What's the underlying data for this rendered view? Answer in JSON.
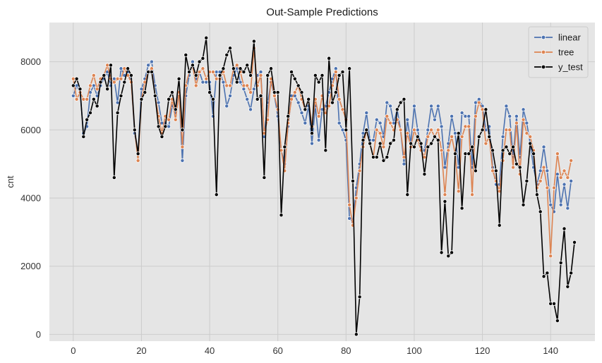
{
  "chart_data": {
    "type": "line",
    "title": "Out-Sample Predictions",
    "xlabel": "",
    "ylabel": "cnt",
    "xlim": [
      -7,
      153
    ],
    "ylim": [
      -200,
      9150
    ],
    "xticks": [
      0,
      20,
      40,
      60,
      80,
      100,
      120,
      140
    ],
    "yticks": [
      0,
      2000,
      4000,
      6000,
      8000
    ],
    "grid": true,
    "legend_position": "top-right",
    "background_color": "#e5e5e5",
    "grid_color": "#cccccc",
    "series": [
      {
        "name": "linear",
        "color": "#4c72b0",
        "values": [
          7000,
          7300,
          7100,
          5900,
          6100,
          7100,
          7300,
          7000,
          7300,
          7500,
          7700,
          7300,
          7500,
          6800,
          7800,
          7600,
          7700,
          7400,
          5900,
          5300,
          7200,
          7500,
          7900,
          8000,
          7300,
          6800,
          6200,
          6200,
          6100,
          6700,
          6500,
          7100,
          5100,
          7000,
          7600,
          8000,
          7500,
          7700,
          7400,
          7400,
          7400,
          6400,
          7700,
          7700,
          7400,
          6700,
          7000,
          7600,
          7800,
          7400,
          7200,
          6900,
          6600,
          7200,
          7600,
          7700,
          5800,
          6800,
          7400,
          7000,
          6400,
          5400,
          5000,
          6100,
          7000,
          7000,
          6800,
          6500,
          6200,
          6700,
          5600,
          6700,
          5700,
          6600,
          6700,
          7100,
          7500,
          7800,
          6200,
          6000,
          5700,
          3400,
          3300,
          4300,
          5000,
          5900,
          6500,
          5700,
          5700,
          6300,
          6200,
          5800,
          6800,
          6700,
          6200,
          6600,
          6000,
          5000,
          6300,
          5600,
          6700,
          6000,
          5500,
          5400,
          6000,
          6700,
          6300,
          6700,
          6100,
          4900,
          5600,
          6400,
          5900,
          4900,
          6500,
          6400,
          6400,
          4900,
          6800,
          6900,
          6700,
          6000,
          6100,
          4900,
          4400,
          4400,
          5800,
          6700,
          6400,
          5200,
          6400,
          5200,
          6600,
          6200,
          5600,
          4900,
          4400,
          4800,
          5500,
          4800,
          3800,
          3600,
          4700,
          3800,
          4400,
          3700,
          4500
        ]
      },
      {
        "name": "tree",
        "color": "#dd8452",
        "values": [
          7500,
          6900,
          7100,
          6900,
          6900,
          7300,
          7600,
          7200,
          7500,
          7600,
          7900,
          7500,
          7400,
          7500,
          7500,
          7800,
          7600,
          7400,
          6000,
          5100,
          6900,
          7400,
          7700,
          7800,
          7000,
          6400,
          5900,
          6400,
          6300,
          6900,
          6300,
          7100,
          5500,
          7300,
          7700,
          7900,
          7300,
          7700,
          7800,
          7500,
          7700,
          7700,
          7500,
          7500,
          7700,
          7300,
          7300,
          7800,
          7900,
          7700,
          7300,
          7300,
          7100,
          8400,
          7300,
          7600,
          5900,
          6300,
          7500,
          7000,
          6600,
          5400,
          4800,
          6200,
          6900,
          7100,
          7300,
          6900,
          6600,
          6900,
          6100,
          6900,
          6400,
          7000,
          6500,
          6700,
          7300,
          7700,
          6900,
          6600,
          6300,
          3800,
          3200,
          4000,
          4800,
          5500,
          6000,
          5600,
          5200,
          6000,
          5900,
          5500,
          6400,
          6200,
          6000,
          6300,
          6000,
          5200,
          5900,
          5500,
          6000,
          5700,
          5400,
          5200,
          5800,
          6000,
          5800,
          6000,
          5400,
          4100,
          5400,
          5800,
          5300,
          4200,
          5800,
          6100,
          6100,
          4100,
          6400,
          6800,
          6600,
          5600,
          5800,
          4800,
          4500,
          4200,
          5100,
          6000,
          6000,
          4900,
          6200,
          4700,
          6300,
          5900,
          5800,
          5400,
          4300,
          4500,
          4900,
          4300,
          2300,
          4300,
          5300,
          4600,
          4800,
          4600,
          5100
        ]
      },
      {
        "name": "y_test",
        "color": "#000000",
        "values": [
          7300,
          7500,
          7200,
          5800,
          6300,
          6500,
          6900,
          6700,
          7400,
          7600,
          7200,
          7900,
          4600,
          6500,
          7000,
          7400,
          7800,
          7600,
          6000,
          5300,
          6900,
          7100,
          7700,
          7700,
          7000,
          6100,
          5800,
          6100,
          6900,
          7100,
          6600,
          7500,
          6000,
          8200,
          7700,
          7900,
          7600,
          8000,
          8100,
          8700,
          7100,
          6900,
          4100,
          7600,
          7800,
          8200,
          8400,
          7800,
          7400,
          7800,
          7700,
          7900,
          7600,
          8600,
          6900,
          7000,
          4600,
          7600,
          7800,
          7100,
          7100,
          3500,
          5500,
          6400,
          7700,
          7500,
          7300,
          7100,
          6600,
          6900,
          5900,
          7600,
          7400,
          7600,
          5400,
          8100,
          6800,
          7100,
          7600,
          7700,
          6000,
          7800,
          4500,
          0,
          1100,
          5700,
          6000,
          5600,
          5200,
          5200,
          5600,
          5100,
          5200,
          5600,
          5700,
          6600,
          6800,
          6900,
          4100,
          5600,
          5500,
          5800,
          5600,
          4700,
          5500,
          5600,
          5800,
          5700,
          2400,
          3900,
          2300,
          2400,
          5300,
          5900,
          3700,
          5300,
          5300,
          5500,
          4800,
          5800,
          6000,
          6600,
          5800,
          5400,
          4800,
          3200,
          5400,
          5500,
          5300,
          5500,
          5000,
          4900,
          3800,
          4500,
          5600,
          5300,
          4100,
          3600,
          1700,
          1800,
          900,
          900,
          400,
          2100,
          3100,
          1400,
          1800,
          2700
        ]
      }
    ]
  }
}
